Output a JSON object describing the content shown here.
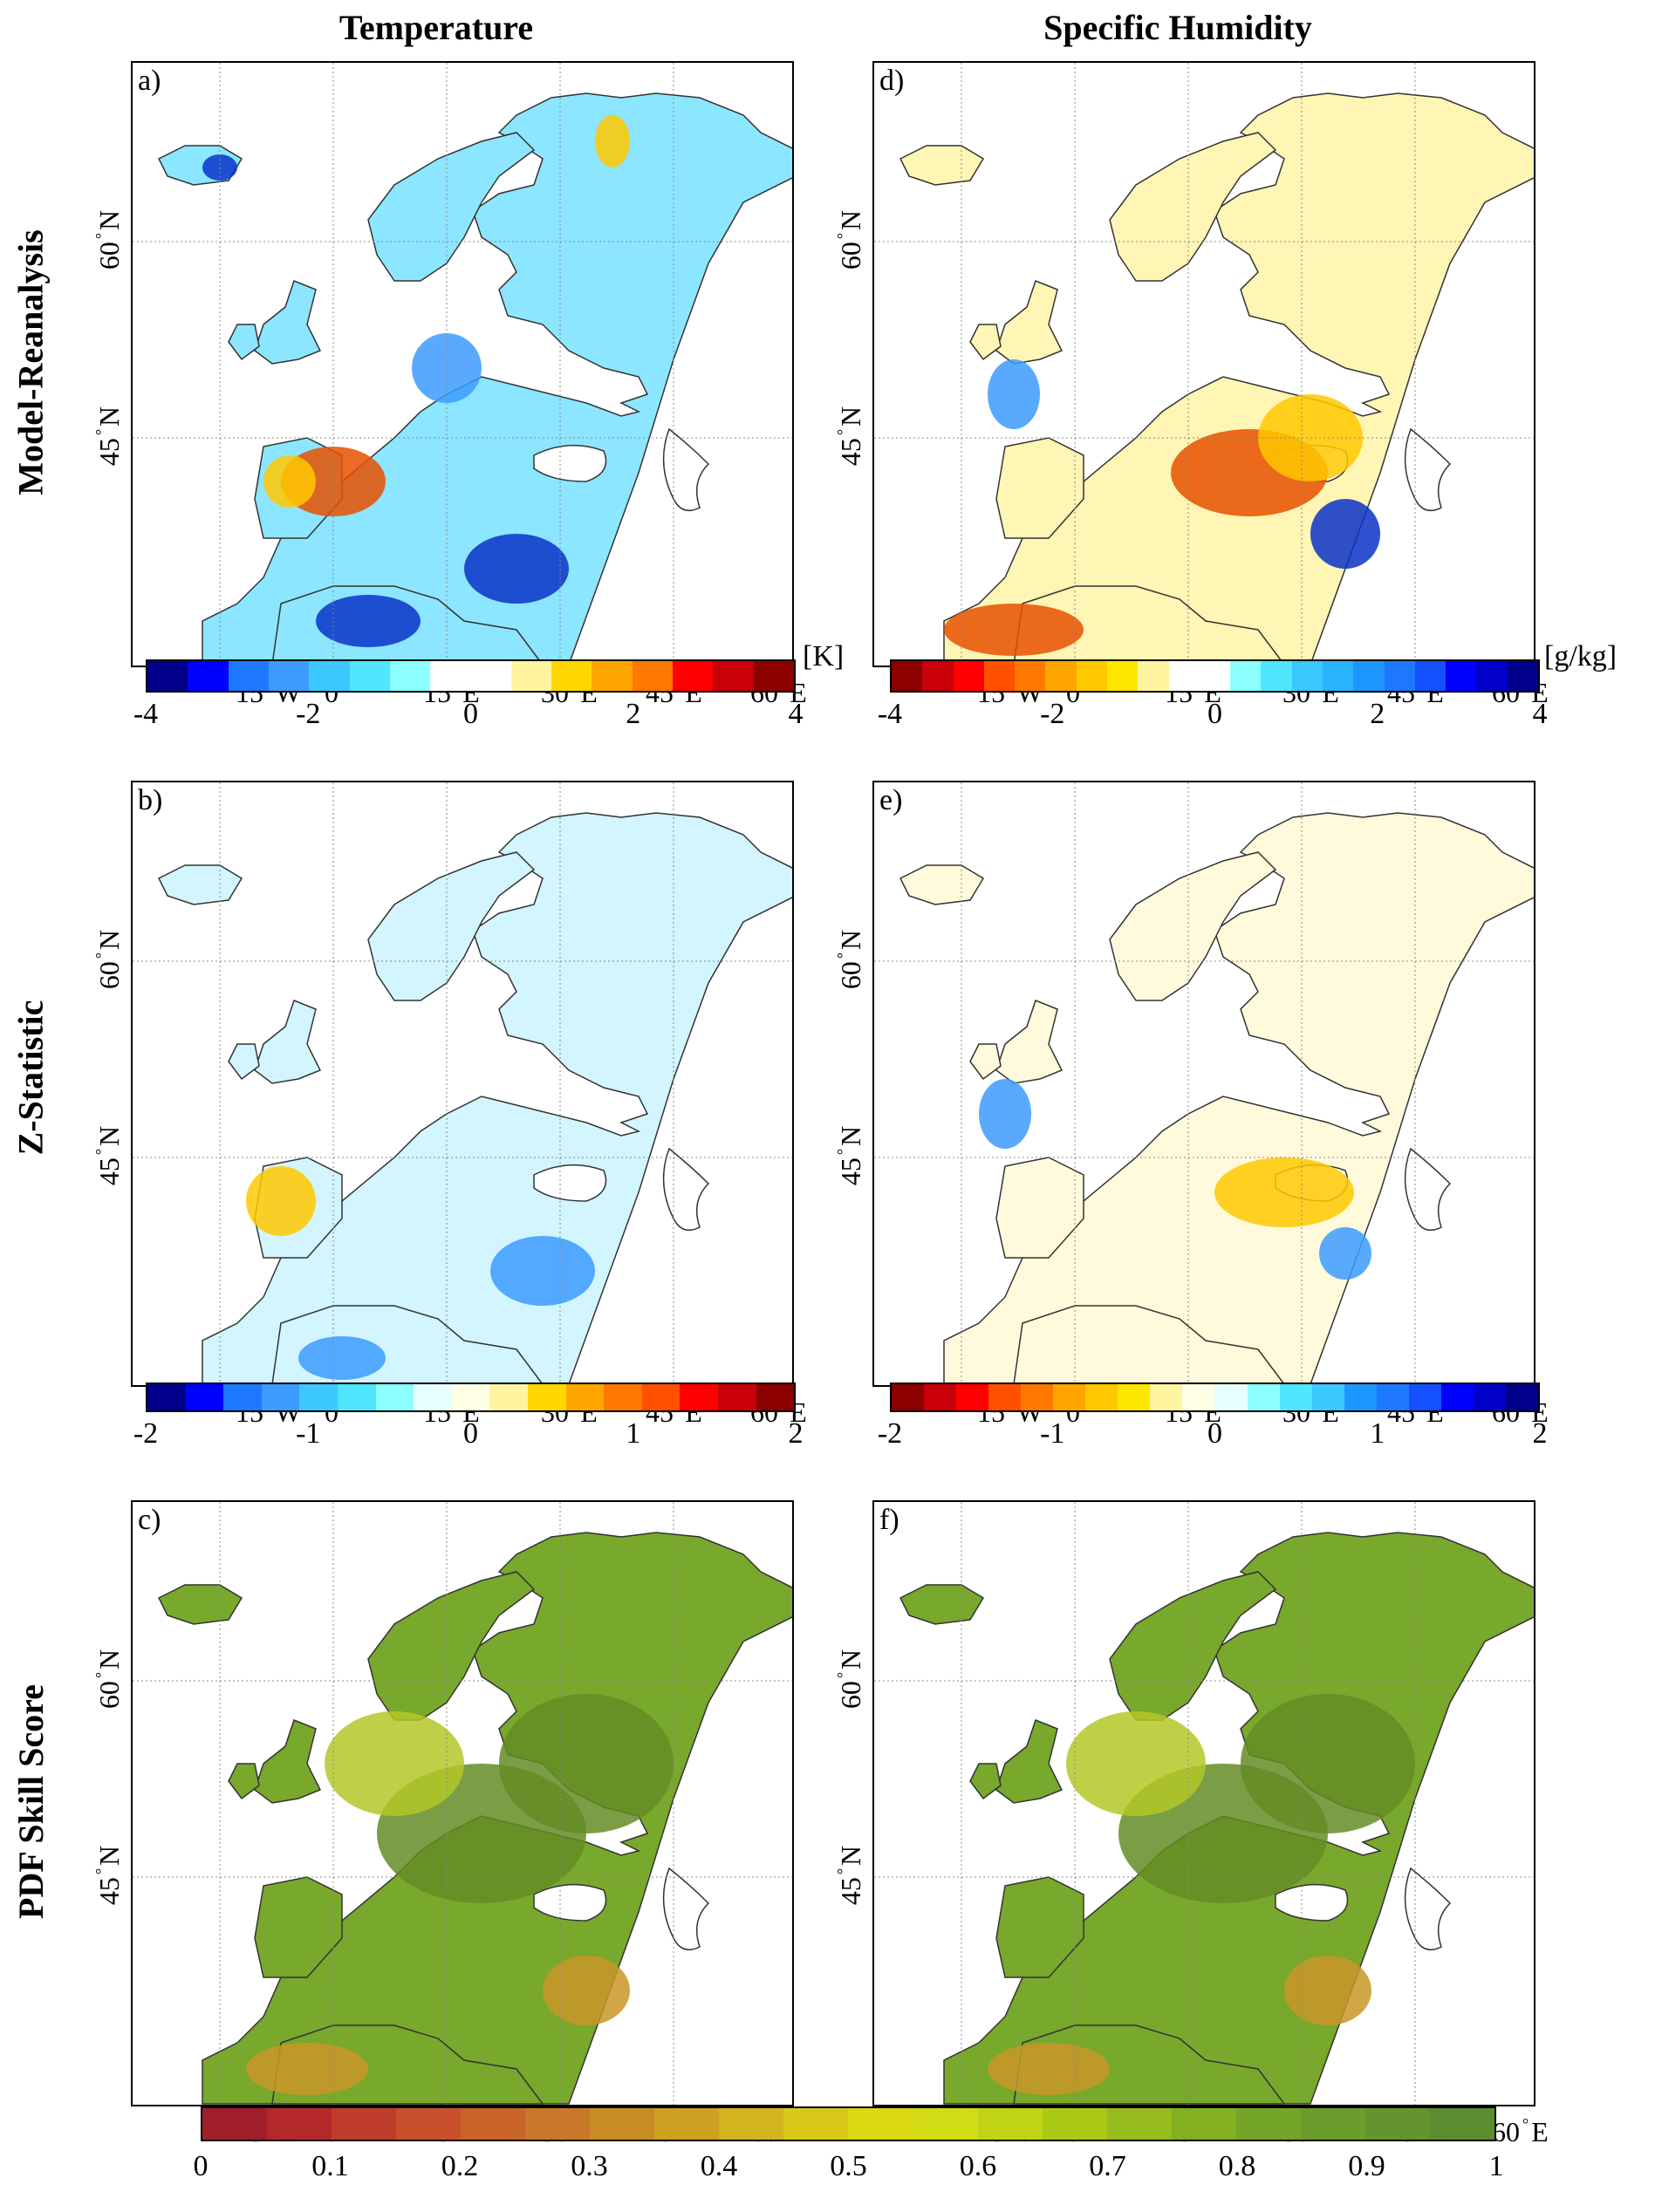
{
  "columns": [
    "Temperature",
    "Specific Humidity"
  ],
  "rows": [
    "Model-Reanalysis",
    "Z-Statistic",
    "PDF Skill Score"
  ],
  "panel_labels": [
    "a)",
    "d)",
    "b)",
    "e)",
    "c)",
    "f)"
  ],
  "lon_labels": [
    "15",
    "W",
    "0",
    "15",
    "E",
    "30",
    "E",
    "45",
    "E",
    "60",
    "E"
  ],
  "lat_labels": [
    "60",
    "N",
    "45",
    "N"
  ],
  "colorbars": {
    "temp_diff": {
      "unit": "[K]",
      "ticks": [
        "-4",
        "-2",
        "0",
        "2",
        "4"
      ],
      "colors": [
        "#00008b",
        "#0000ff",
        "#1e78ff",
        "#3c9bff",
        "#3cc8ff",
        "#50e6ff",
        "#8cffff",
        "#ffffff",
        "#ffffff",
        "#fff5a0",
        "#ffd700",
        "#ffa500",
        "#ff7800",
        "#ff0000",
        "#c8000a",
        "#8c0000"
      ]
    },
    "hum_diff": {
      "unit": "[g/kg]",
      "ticks": [
        "-4",
        "-2",
        "0",
        "2",
        "4"
      ],
      "colors": [
        "#8c0000",
        "#c8000a",
        "#ff0000",
        "#ff5000",
        "#ff7800",
        "#ffa500",
        "#ffc800",
        "#ffe600",
        "#fff5a0",
        "#ffffff",
        "#ffffff",
        "#8cffff",
        "#50e6ff",
        "#3cc8ff",
        "#28b4ff",
        "#1e96ff",
        "#1e78ff",
        "#1450ff",
        "#0000ff",
        "#0000c8",
        "#00008b"
      ]
    },
    "temp_z": {
      "ticks": [
        "-2",
        "-1",
        "0",
        "1",
        "2"
      ],
      "colors": [
        "#00008b",
        "#0000ff",
        "#1e78ff",
        "#3c9bff",
        "#3cc8ff",
        "#50e6ff",
        "#8cffff",
        "#e6ffff",
        "#ffffe6",
        "#fff5a0",
        "#ffd700",
        "#ffa500",
        "#ff7800",
        "#ff5000",
        "#ff0000",
        "#c8000a",
        "#8c0000"
      ]
    },
    "hum_z": {
      "ticks": [
        "-2",
        "-1",
        "0",
        "1",
        "2"
      ],
      "colors": [
        "#8c0000",
        "#c8000a",
        "#ff0000",
        "#ff5000",
        "#ff7800",
        "#ffa500",
        "#ffc800",
        "#ffe600",
        "#fff5a0",
        "#ffffe6",
        "#e6ffff",
        "#8cffff",
        "#50e6ff",
        "#3cc8ff",
        "#1e96ff",
        "#1e78ff",
        "#1450ff",
        "#0000ff",
        "#0000c8",
        "#00008b"
      ]
    },
    "skill": {
      "ticks": [
        "0",
        "0.1",
        "0.2",
        "0.3",
        "0.4",
        "0.5",
        "0.6",
        "0.7",
        "0.8",
        "0.9",
        "1"
      ],
      "colors": [
        "#a01e2a",
        "#b4282c",
        "#c03c2c",
        "#c8502c",
        "#c86428",
        "#c87828",
        "#c88c24",
        "#cca020",
        "#d2b41e",
        "#d8c818",
        "#dcd814",
        "#d2dc14",
        "#c0d414",
        "#aac814",
        "#96bc1e",
        "#82b020",
        "#74a428",
        "#6c9c2c",
        "#64942e",
        "#5c8c30"
      ]
    }
  },
  "map_fills": {
    "land_temp_diff": "#8ce6ff",
    "land_hum_diff": "#fff5b4",
    "land_temp_z": "#d2f5ff",
    "land_hum_z": "#fffadc",
    "land_skill": "#78a82c",
    "hot_spot": "#e65000",
    "warm_spot": "#ffc800",
    "cold_spot": "#0a32c8",
    "mid_blue": "#3c9bff",
    "skill_dark": "#648c24",
    "skill_light": "#b4c828",
    "skill_low": "#c89628"
  }
}
